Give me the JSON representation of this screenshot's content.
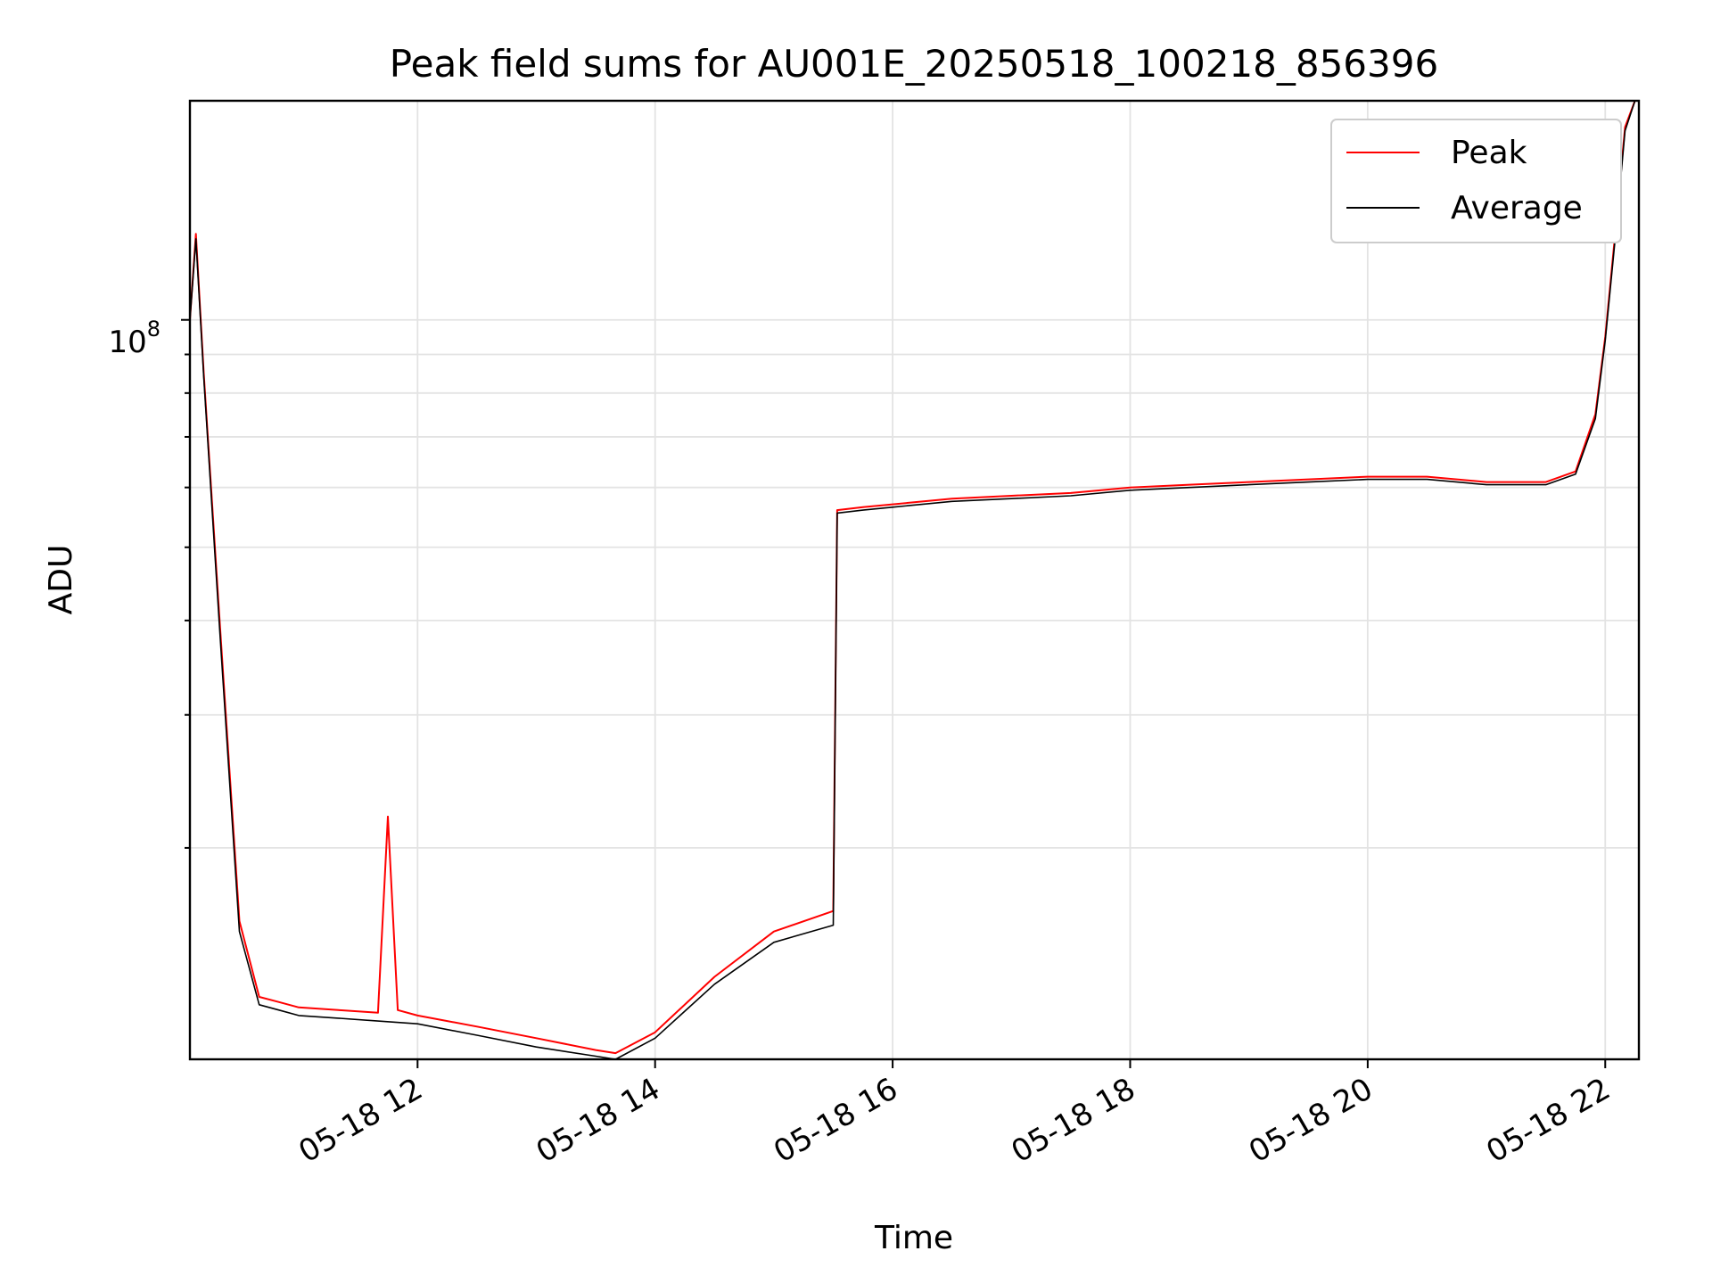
{
  "chart_data": {
    "type": "line",
    "title": "Peak field sums for AU001E_20250518_100218_856396",
    "xlabel": "Time",
    "ylabel": "ADU",
    "x_tick_labels": [
      "05-18 12",
      "05-18 14",
      "05-18 16",
      "05-18 18",
      "05-18 20",
      "05-18 22"
    ],
    "y_tick_label_major": "10",
    "y_tick_label_major_exp": "8",
    "y_scale": "log",
    "xlim": [
      "2025-05-18 10:05",
      "2025-05-18 22:17"
    ],
    "ylim": [
      10500000.0,
      195000000.0
    ],
    "grid": true,
    "legend_position": "top-right",
    "colors": {
      "peak": "#ff0000",
      "average": "#000000"
    },
    "series": [
      {
        "name": "Peak",
        "x": [
          "2025-05-18 10:05",
          "2025-05-18 10:08",
          "2025-05-18 10:12",
          "2025-05-18 10:20",
          "2025-05-18 10:30",
          "2025-05-18 10:40",
          "2025-05-18 10:50",
          "2025-05-18 11:00",
          "2025-05-18 11:20",
          "2025-05-18 11:40",
          "2025-05-18 11:45",
          "2025-05-18 11:50",
          "2025-05-18 12:00",
          "2025-05-18 12:30",
          "2025-05-18 13:00",
          "2025-05-18 13:30",
          "2025-05-18 13:40",
          "2025-05-18 14:00",
          "2025-05-18 14:30",
          "2025-05-18 15:00",
          "2025-05-18 15:30",
          "2025-05-18 15:32",
          "2025-05-18 15:45",
          "2025-05-18 16:00",
          "2025-05-18 16:30",
          "2025-05-18 17:00",
          "2025-05-18 17:30",
          "2025-05-18 18:00",
          "2025-05-18 18:30",
          "2025-05-18 19:00",
          "2025-05-18 19:30",
          "2025-05-18 20:00",
          "2025-05-18 20:30",
          "2025-05-18 21:00",
          "2025-05-18 21:30",
          "2025-05-18 21:45",
          "2025-05-18 21:55",
          "2025-05-18 22:00",
          "2025-05-18 22:05",
          "2025-05-18 22:10",
          "2025-05-18 22:15"
        ],
        "y": [
          100000000.0,
          130000000.0,
          85000000.0,
          40000000.0,
          16000000.0,
          12700000.0,
          12500000.0,
          12300000.0,
          12200000.0,
          12100000.0,
          22000000.0,
          12200000.0,
          12000000.0,
          11600000.0,
          11200000.0,
          10800000.0,
          10700000.0,
          11400000.0,
          13500000.0,
          15500000.0,
          16500000.0,
          56000000.0,
          56500000.0,
          57000000.0,
          58000000.0,
          58500000.0,
          59000000.0,
          60000000.0,
          60500000.0,
          61000000.0,
          61500000.0,
          62000000.0,
          62000000.0,
          61000000.0,
          61000000.0,
          63000000.0,
          75000000.0,
          95000000.0,
          130000000.0,
          180000000.0,
          195000000.0
        ]
      },
      {
        "name": "Average",
        "x": [
          "2025-05-18 10:05",
          "2025-05-18 10:08",
          "2025-05-18 10:12",
          "2025-05-18 10:20",
          "2025-05-18 10:30",
          "2025-05-18 10:40",
          "2025-05-18 10:50",
          "2025-05-18 11:00",
          "2025-05-18 11:20",
          "2025-05-18 11:40",
          "2025-05-18 12:00",
          "2025-05-18 12:30",
          "2025-05-18 13:00",
          "2025-05-18 13:30",
          "2025-05-18 13:40",
          "2025-05-18 14:00",
          "2025-05-18 14:30",
          "2025-05-18 15:00",
          "2025-05-18 15:30",
          "2025-05-18 15:32",
          "2025-05-18 15:45",
          "2025-05-18 16:00",
          "2025-05-18 16:30",
          "2025-05-18 17:00",
          "2025-05-18 17:30",
          "2025-05-18 18:00",
          "2025-05-18 18:30",
          "2025-05-18 19:00",
          "2025-05-18 19:30",
          "2025-05-18 20:00",
          "2025-05-18 20:30",
          "2025-05-18 21:00",
          "2025-05-18 21:30",
          "2025-05-18 21:45",
          "2025-05-18 21:55",
          "2025-05-18 22:00",
          "2025-05-18 22:05",
          "2025-05-18 22:10",
          "2025-05-18 22:15"
        ],
        "y": [
          100000000.0,
          128000000.0,
          84000000.0,
          39000000.0,
          15500000.0,
          12400000.0,
          12200000.0,
          12000000.0,
          11900000.0,
          11800000.0,
          11700000.0,
          11300000.0,
          10900000.0,
          10600000.0,
          10500000.0,
          11200000.0,
          13200000.0,
          15000000.0,
          15800000.0,
          55500000.0,
          56000000.0,
          56500000.0,
          57500000.0,
          58000000.0,
          58500000.0,
          59500000.0,
          60000000.0,
          60500000.0,
          61000000.0,
          61500000.0,
          61500000.0,
          60500000.0,
          60500000.0,
          62500000.0,
          74000000.0,
          94000000.0,
          128000000.0,
          178000000.0,
          195000000.0
        ]
      }
    ]
  }
}
